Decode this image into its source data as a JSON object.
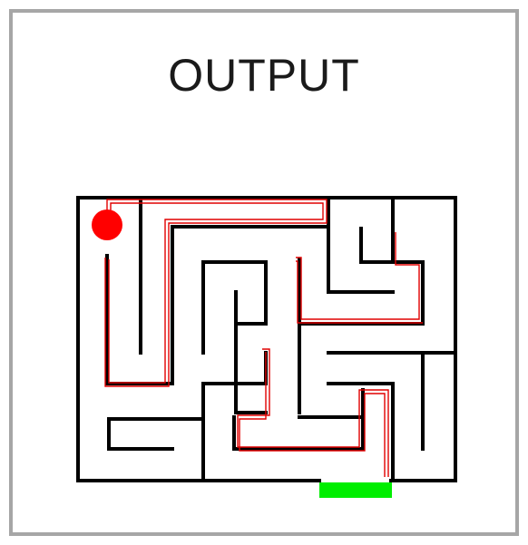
{
  "title": "OUTPUT",
  "colors": {
    "frame": "#a6a6a6",
    "walls": "#000000",
    "path": "#e00000",
    "start_marker": "#ff0000",
    "exit_marker": "#00ee00"
  },
  "maze": {
    "start_marker": "red-circle",
    "exit_marker": "green-bar"
  }
}
